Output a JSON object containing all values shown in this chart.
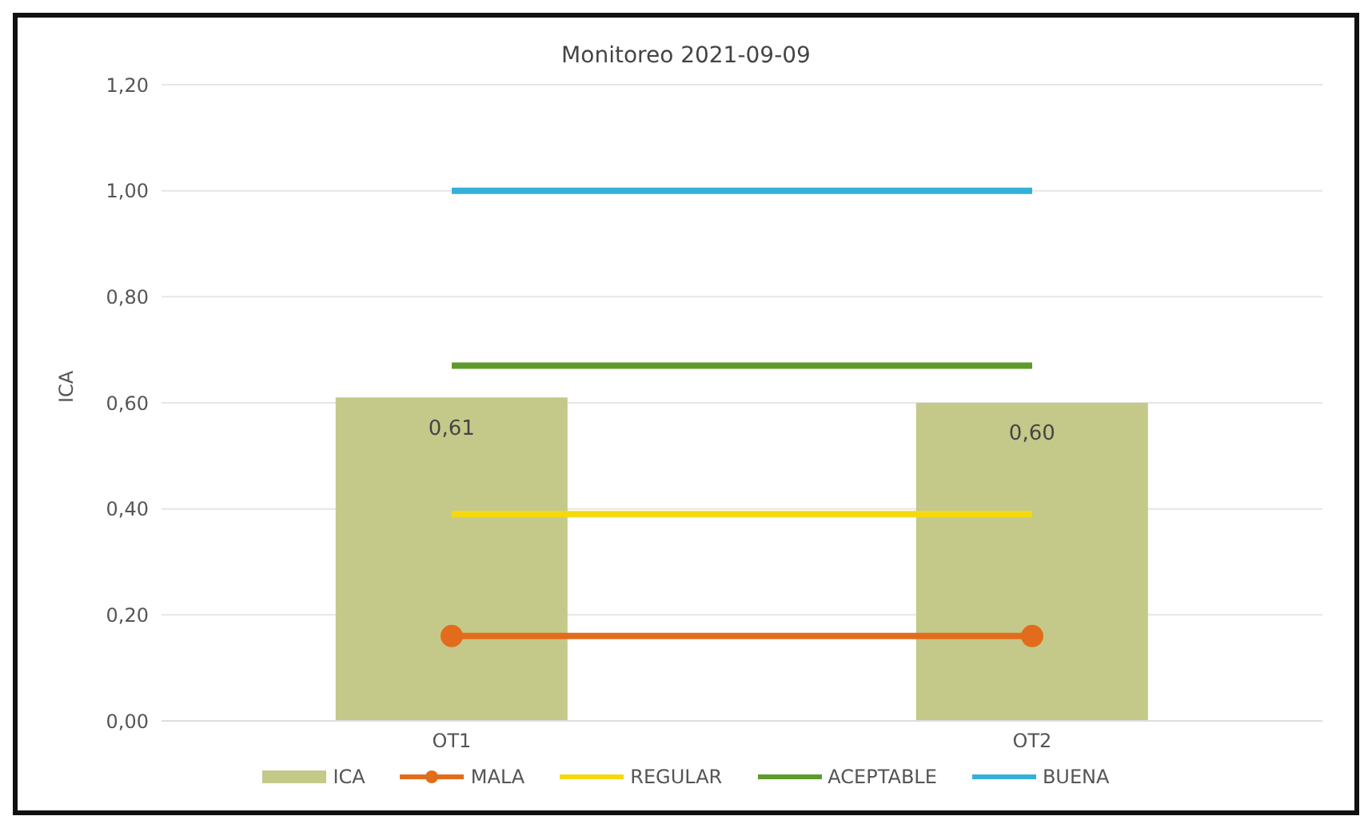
{
  "chart_data": {
    "type": "bar",
    "title": "Monitoreo 2021-09-09",
    "ylabel": "ICA",
    "categories": [
      "OT1",
      "OT2"
    ],
    "series": [
      {
        "name": "ICA",
        "color": "#c4c98a",
        "values": [
          0.61,
          0.6
        ],
        "value_labels": [
          "0,61",
          "0,60"
        ]
      },
      {
        "name": "MALA",
        "type": "line",
        "color": "#e36c1c",
        "values": [
          0.16,
          0.16
        ],
        "marker": "circle"
      },
      {
        "name": "REGULAR",
        "type": "line",
        "color": "#f5d90f",
        "values": [
          0.39,
          0.39
        ],
        "marker": "none"
      },
      {
        "name": "ACEPTABLE",
        "type": "line",
        "color": "#5f9a2c",
        "values": [
          0.67,
          0.67
        ],
        "marker": "none"
      },
      {
        "name": "BUENA",
        "type": "line",
        "color": "#35b0d8",
        "values": [
          1.0,
          1.0
        ],
        "marker": "none"
      }
    ],
    "ylim": [
      0,
      1.2
    ],
    "yticks": [
      {
        "value": 0,
        "label": "0,00"
      },
      {
        "value": 0.2,
        "label": "0,20"
      },
      {
        "value": 0.4,
        "label": "0,40"
      },
      {
        "value": 0.6,
        "label": "0,60"
      },
      {
        "value": 0.8,
        "label": "0,80"
      },
      {
        "value": 1,
        "label": "1,00"
      },
      {
        "value": 1.2,
        "label": "1,20"
      }
    ],
    "grid": "y",
    "legend": "bottom"
  }
}
